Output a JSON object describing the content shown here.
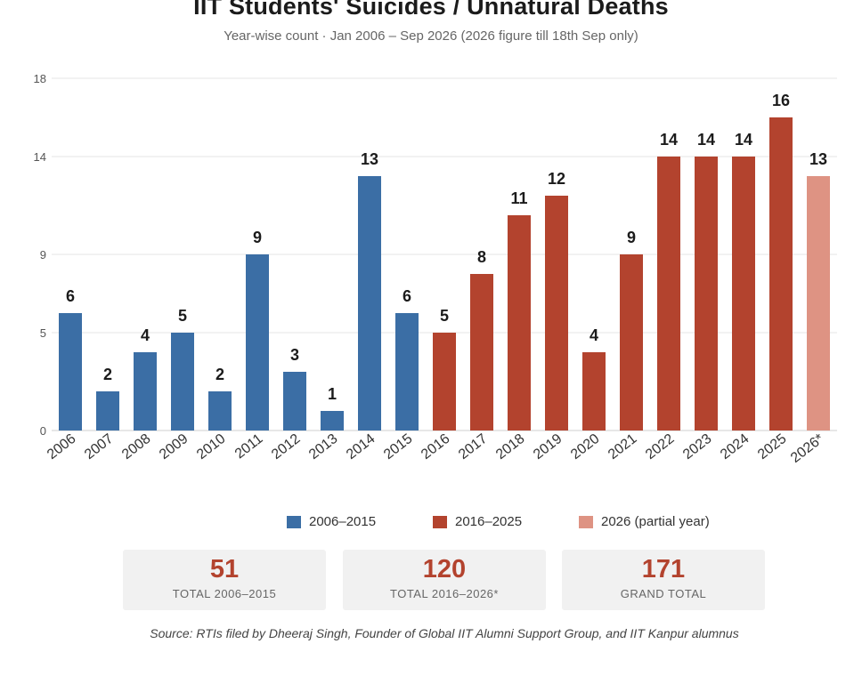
{
  "title": "IIT Students' Suicides / Unnatural Deaths",
  "subtitle": "Year-wise count · Jan 2006 – Sep 2026 (2026 figure till 18th Sep only)",
  "colors": {
    "period1": "#3b6ea5",
    "period2": "#b3432e",
    "partial": "#de9383",
    "grid": "#e6e6e6",
    "total_value": "#b3432e"
  },
  "legend": [
    {
      "label": "2006–2015",
      "color": "#3b6ea5"
    },
    {
      "label": "2016–2025",
      "color": "#b3432e"
    },
    {
      "label": "2026 (partial year)",
      "color": "#de9383"
    }
  ],
  "chart_data": {
    "type": "bar",
    "categories": [
      "2006",
      "2007",
      "2008",
      "2009",
      "2010",
      "2011",
      "2012",
      "2013",
      "2014",
      "2015",
      "2016",
      "2017",
      "2018",
      "2019",
      "2020",
      "2021",
      "2022",
      "2023",
      "2024",
      "2025",
      "2026*"
    ],
    "values": [
      6,
      2,
      4,
      5,
      2,
      9,
      3,
      1,
      13,
      6,
      5,
      8,
      11,
      12,
      4,
      9,
      14,
      14,
      14,
      16,
      13
    ],
    "groups": [
      "2006–2015",
      "2006–2015",
      "2006–2015",
      "2006–2015",
      "2006–2015",
      "2006–2015",
      "2006–2015",
      "2006–2015",
      "2006–2015",
      "2006–2015",
      "2016–2025",
      "2016–2025",
      "2016–2025",
      "2016–2025",
      "2016–2025",
      "2016–2025",
      "2016–2025",
      "2016–2025",
      "2016–2025",
      "2016–2025",
      "2026 (partial year)"
    ],
    "yticks": [
      0,
      5,
      9,
      14,
      18
    ],
    "ylim": [
      0,
      18
    ],
    "grid": true,
    "legend_position": "bottom-center"
  },
  "totals": [
    {
      "value": "51",
      "label": "TOTAL 2006–2015"
    },
    {
      "value": "120",
      "label": "TOTAL 2016–2026*"
    },
    {
      "value": "171",
      "label": "GRAND TOTAL"
    }
  ],
  "source": "Source: RTIs filed by Dheeraj Singh, Founder of Global IIT Alumni Support Group, and IIT Kanpur alumnus"
}
